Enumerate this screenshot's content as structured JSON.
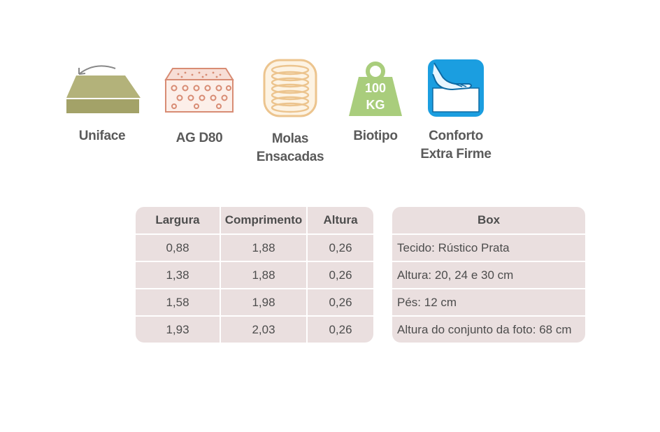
{
  "features": [
    {
      "icon": "mattress-uniface-icon",
      "label_lines": [
        "Uniface"
      ]
    },
    {
      "icon": "foam-density-icon",
      "label_lines": [
        "AG D80"
      ]
    },
    {
      "icon": "pocket-springs-icon",
      "label_lines": [
        "Molas",
        "Ensacadas"
      ]
    },
    {
      "icon": "weight-100kg-icon",
      "icon_text": [
        "100",
        "KG"
      ],
      "label_lines": [
        "Biotipo"
      ]
    },
    {
      "icon": "firm-comfort-icon",
      "label_lines": [
        "Conforto",
        "Extra Firme"
      ]
    }
  ],
  "sizes_table": {
    "headers": [
      "Largura",
      "Comprimento",
      "Altura"
    ],
    "rows": [
      [
        "0,88",
        "1,88",
        "0,26"
      ],
      [
        "1,38",
        "1,88",
        "0,26"
      ],
      [
        "1,58",
        "1,98",
        "0,26"
      ],
      [
        "1,93",
        "2,03",
        "0,26"
      ]
    ]
  },
  "box_table": {
    "header": "Box",
    "rows": [
      "Tecido: Rústico Prata",
      "Altura: 20, 24 e 30 cm",
      "Pés: 12 cm",
      "Altura do conjunto da foto: 68 cm"
    ]
  },
  "colors": {
    "olive": "#b3b27a",
    "salmon": "#d88c74",
    "tan": "#ecc48e",
    "green": "#a9cd7c",
    "blue": "#1b9ee0",
    "table_bg": "#eadfdf"
  }
}
